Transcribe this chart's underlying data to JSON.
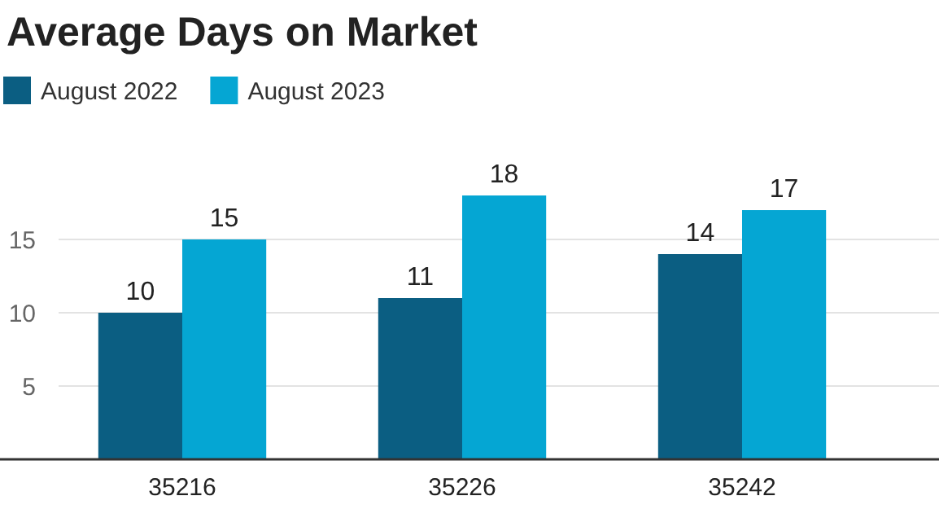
{
  "chart_data": {
    "type": "bar",
    "title": "Average Days on Market",
    "categories": [
      "35216",
      "35226",
      "35242"
    ],
    "series": [
      {
        "name": "August 2022",
        "color": "#0b5e82",
        "values": [
          10,
          11,
          14
        ]
      },
      {
        "name": "August 2023",
        "color": "#05a6d3",
        "values": [
          15,
          18,
          17
        ]
      }
    ],
    "ylim": [
      0,
      18
    ],
    "yticks": [
      5,
      10,
      15
    ],
    "grid": "y",
    "legend": "top left",
    "data_labels": true
  }
}
